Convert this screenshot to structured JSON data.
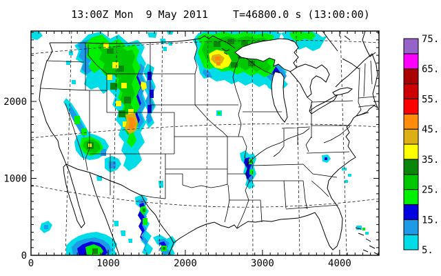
{
  "title": "13:00Z Mon  9 May 2011    T=46800.0 s (13:00:00)",
  "chart_data": {
    "type": "heatmap",
    "title": "13:00Z Mon  9 May 2011    T=46800.0 s (13:00:00)",
    "xlabel": "",
    "ylabel": "",
    "x_tick_labels": [
      "0",
      "1000",
      "2000",
      "3000",
      "4000"
    ],
    "x_tick_values": [
      0,
      1000,
      2000,
      3000,
      4000
    ],
    "y_tick_labels": [
      "0",
      "1000",
      "2000"
    ],
    "y_tick_values": [
      0,
      1000,
      2000
    ],
    "x_range": [
      0,
      4510
    ],
    "y_range": [
      0,
      2915
    ],
    "minor_tick_interval": 100,
    "grid": "dashed latitude-longitude graticule over map",
    "map_region": "Continental United States with state boundaries, Great Lakes, Canada and Mexico coastlines",
    "colorbar": {
      "levels": [
        5,
        10,
        15,
        20,
        25,
        30,
        35,
        40,
        45,
        50,
        55,
        60,
        65,
        70,
        75
      ],
      "tick_labels": [
        "75.",
        "65.",
        "55.",
        "45.",
        "35.",
        "25.",
        "15.",
        "5."
      ],
      "colors_low_to_high": [
        "#00DDE6",
        "#1E9BE6",
        "#0000E1",
        "#00F000",
        "#00C800",
        "#0A870A",
        "#FFFF00",
        "#DCAF14",
        "#FF8C0A",
        "#FF0000",
        "#CC0000",
        "#AA0000",
        "#FF00FF",
        "#9664C8"
      ]
    },
    "precipitation_systems": [
      {
        "name": "northern-rockies-system",
        "location": "Idaho / Montana / Wyoming / Utah / Colorado",
        "peak": "orange core (45-50) in central Colorado, yellow cells embedded in green"
      },
      {
        "name": "upper-midwest-system",
        "location": "Minnesota / Lake Superior / Upper Michigan",
        "peak": "orange core (45-50) in central Minnesota, blue band over Lake Superior"
      },
      {
        "name": "missouri-cell",
        "location": "central Missouri",
        "peak": "green (25-30) in blue/cyan area"
      },
      {
        "name": "rio-grande-chain",
        "location": "southwest Texas along Rio Grande",
        "peak": "dark green (30-35) cells in blue"
      },
      {
        "name": "northeast-mexico-system",
        "location": "northeast Mexico south of Texas border",
        "peak": "dark green (30-35) core ringed by blue and cyan"
      },
      {
        "name": "sierra-nevada-band",
        "location": "California / Nevada border",
        "peak": "green (25-30)"
      },
      {
        "name": "arizona-cluster",
        "location": "southern Nevada / northwest Arizona",
        "peak": "yellow (35-40) speck in green"
      },
      {
        "name": "scattered-light-echoes",
        "location": "North Dakota, Iowa, New Mexico, North Carolina, Atlantic offshore, Bahamas",
        "peak": "cyan (5-10)"
      }
    ]
  }
}
